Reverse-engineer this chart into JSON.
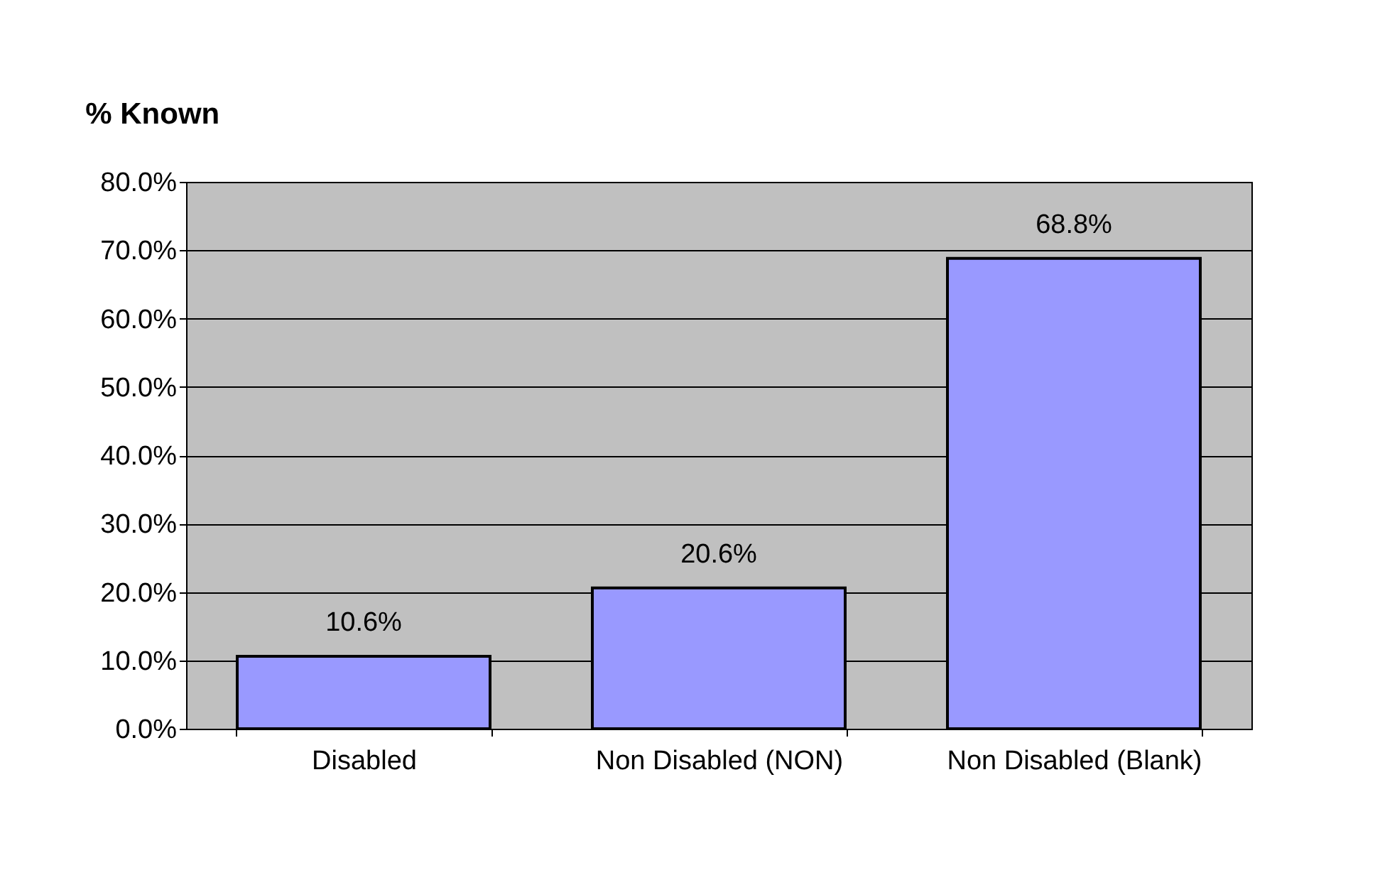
{
  "chart_data": {
    "type": "bar",
    "title": "% Known",
    "categories": [
      "Disabled",
      "Non Disabled (NON)",
      "Non Disabled (Blank)"
    ],
    "values": [
      10.6,
      20.6,
      68.8
    ],
    "value_labels": [
      "10.6%",
      "20.6%",
      "68.8%"
    ],
    "color": "#9999ff",
    "ylim": [
      0,
      80
    ],
    "yticks": [
      {
        "value": 0,
        "label": "0.0%"
      },
      {
        "value": 10,
        "label": "10.0%"
      },
      {
        "value": 20,
        "label": "20.0%"
      },
      {
        "value": 30,
        "label": "30.0%"
      },
      {
        "value": 40,
        "label": "40.0%"
      },
      {
        "value": 50,
        "label": "50.0%"
      },
      {
        "value": 60,
        "label": "60.0%"
      },
      {
        "value": 70,
        "label": "70.0%"
      },
      {
        "value": 80,
        "label": "80.0%"
      }
    ],
    "grid": "y"
  }
}
